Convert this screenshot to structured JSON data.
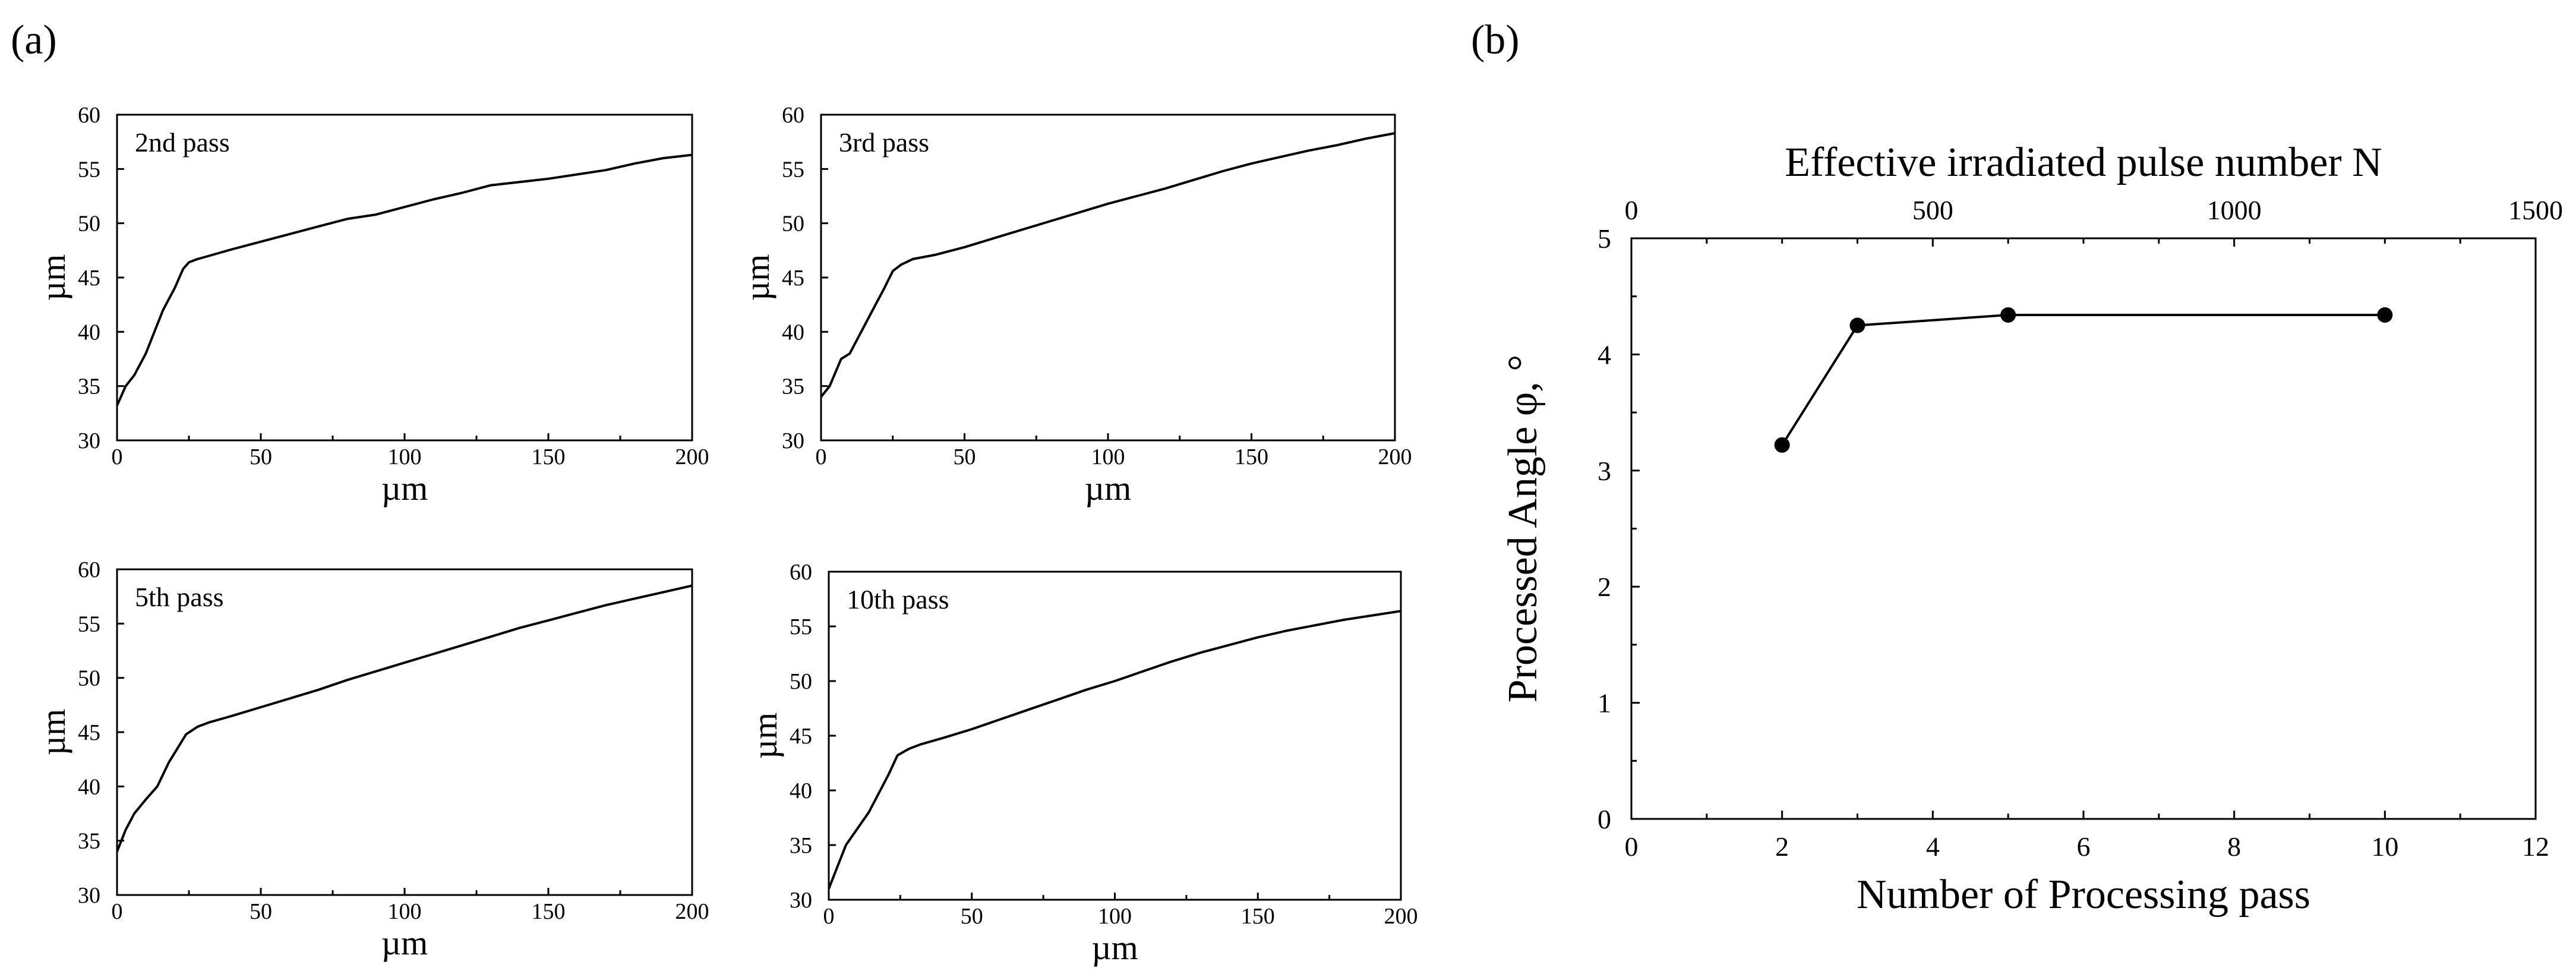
{
  "figure": {
    "panel_a_label": "(a)",
    "panel_b_label": "(b)"
  },
  "colors": {
    "line": "#000000",
    "background": "#ffffff"
  },
  "chart_data": [
    {
      "id": "a1",
      "type": "line",
      "annotation": "2nd pass",
      "xlabel": "µm",
      "ylabel": "µm",
      "xlim": [
        0,
        200
      ],
      "ylim": [
        30,
        60
      ],
      "xticks": [
        0,
        50,
        100,
        150,
        200
      ],
      "yticks": [
        30,
        35,
        40,
        45,
        50,
        55,
        60
      ],
      "x": [
        0,
        3,
        6,
        10,
        13,
        16,
        18,
        20,
        23,
        25,
        28,
        32,
        40,
        50,
        60,
        70,
        80,
        90,
        100,
        110,
        120,
        130,
        140,
        150,
        160,
        170,
        175,
        180,
        190,
        200
      ],
      "y": [
        33.2,
        35.0,
        36.0,
        38.0,
        40.0,
        42.0,
        43.0,
        44.0,
        45.8,
        46.4,
        46.7,
        47.0,
        47.6,
        48.3,
        49.0,
        49.7,
        50.4,
        50.8,
        51.5,
        52.2,
        52.8,
        53.5,
        53.8,
        54.1,
        54.5,
        54.9,
        55.2,
        55.5,
        56.0,
        56.3
      ]
    },
    {
      "id": "a2",
      "type": "line",
      "annotation": "3rd pass",
      "xlabel": "µm",
      "ylabel": "µm",
      "xlim": [
        0,
        200
      ],
      "ylim": [
        30,
        60
      ],
      "xticks": [
        0,
        50,
        100,
        150,
        200
      ],
      "yticks": [
        30,
        35,
        40,
        45,
        50,
        55,
        60
      ],
      "x": [
        0,
        3,
        7,
        10,
        14,
        18,
        22,
        25,
        28,
        32,
        40,
        50,
        60,
        70,
        80,
        90,
        100,
        110,
        120,
        130,
        140,
        150,
        160,
        170,
        180,
        190,
        200
      ],
      "y": [
        34.0,
        35.0,
        37.5,
        38.0,
        40.0,
        42.0,
        44.0,
        45.6,
        46.2,
        46.7,
        47.1,
        47.8,
        48.6,
        49.4,
        50.2,
        51.0,
        51.8,
        52.5,
        53.2,
        54.0,
        54.8,
        55.5,
        56.1,
        56.7,
        57.2,
        57.8,
        58.3
      ]
    },
    {
      "id": "a3",
      "type": "line",
      "annotation": "5th pass",
      "xlabel": "µm",
      "ylabel": "µm",
      "xlim": [
        0,
        200
      ],
      "ylim": [
        30,
        60
      ],
      "xticks": [
        0,
        50,
        100,
        150,
        200
      ],
      "yticks": [
        30,
        35,
        40,
        45,
        50,
        55,
        60
      ],
      "x": [
        0,
        3,
        6,
        10,
        14,
        18,
        21,
        24,
        28,
        32,
        40,
        50,
        60,
        70,
        80,
        90,
        100,
        110,
        120,
        130,
        140,
        150,
        160,
        170,
        180,
        190,
        200
      ],
      "y": [
        34.0,
        36.0,
        37.5,
        38.8,
        40.0,
        42.2,
        43.5,
        44.8,
        45.5,
        45.9,
        46.5,
        47.3,
        48.1,
        48.9,
        49.8,
        50.6,
        51.4,
        52.2,
        53.0,
        53.8,
        54.6,
        55.3,
        56.0,
        56.7,
        57.3,
        57.9,
        58.5
      ]
    },
    {
      "id": "a4",
      "type": "line",
      "annotation": "10th pass",
      "xlabel": "µm",
      "ylabel": "µm",
      "xlim": [
        0,
        200
      ],
      "ylim": [
        30,
        60
      ],
      "xticks": [
        0,
        50,
        100,
        150,
        200
      ],
      "yticks": [
        30,
        35,
        40,
        45,
        50,
        55,
        60
      ],
      "x": [
        0,
        3,
        6,
        10,
        14,
        18,
        21,
        24,
        28,
        32,
        40,
        50,
        60,
        70,
        80,
        90,
        100,
        110,
        120,
        130,
        140,
        150,
        160,
        170,
        180,
        190,
        200
      ],
      "y": [
        31.0,
        33.0,
        35.0,
        36.5,
        38.0,
        40.0,
        41.5,
        43.2,
        43.8,
        44.2,
        44.8,
        45.6,
        46.5,
        47.4,
        48.3,
        49.2,
        50.0,
        50.9,
        51.8,
        52.6,
        53.3,
        54.0,
        54.6,
        55.1,
        55.6,
        56.0,
        56.4
      ]
    },
    {
      "id": "b",
      "type": "scatter",
      "xlabel": "Number of Processing pass",
      "ylabel": "Processed Angle φ, °",
      "x2label": "Effective irradiated pulse number N",
      "xlim": [
        0,
        12
      ],
      "ylim": [
        0,
        5
      ],
      "x2lim": [
        0,
        1500
      ],
      "xticks": [
        0,
        2,
        4,
        6,
        8,
        10,
        12
      ],
      "yticks": [
        0,
        1,
        2,
        3,
        4,
        5
      ],
      "x2ticks": [
        0,
        500,
        1000,
        1500
      ],
      "x": [
        2,
        3,
        5,
        10
      ],
      "y": [
        3.22,
        4.25,
        4.34,
        4.34
      ]
    }
  ]
}
